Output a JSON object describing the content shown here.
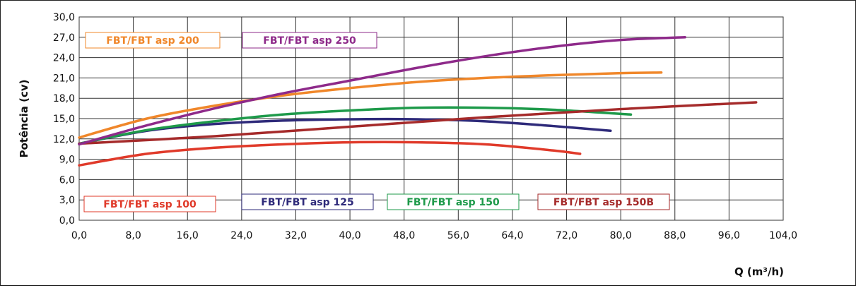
{
  "chart_data": {
    "type": "line",
    "title": "",
    "xlabel": "Q (m³/h)",
    "ylabel": "Potência (cv)",
    "xlim": [
      0,
      104
    ],
    "ylim": [
      0,
      30
    ],
    "xticks": [
      0,
      8,
      16,
      24,
      32,
      40,
      48,
      56,
      64,
      72,
      80,
      88,
      96,
      104
    ],
    "yticks": [
      0,
      3,
      6,
      9,
      12,
      15,
      18,
      21,
      24,
      27,
      30
    ],
    "xtick_labels": [
      "0,0",
      "8,0",
      "16,0",
      "24,0",
      "32,0",
      "40,0",
      "48,0",
      "56,0",
      "64,0",
      "72,0",
      "80,0",
      "88,0",
      "96,0",
      "104,0"
    ],
    "ytick_labels": [
      "0,0",
      "3,0",
      "6,0",
      "9,0",
      "12,0",
      "15,0",
      "18,0",
      "21,0",
      "24,0",
      "27,0",
      "30,0"
    ],
    "grid": true,
    "series": [
      {
        "name": "FBT/FBT asp 100",
        "color": "#e03a2a",
        "x": [
          0,
          10,
          20,
          30,
          40,
          50,
          60,
          70,
          74
        ],
        "y": [
          8.1,
          9.8,
          10.7,
          11.2,
          11.5,
          11.5,
          11.2,
          10.3,
          9.8
        ]
      },
      {
        "name": "FBT/FBT asp 125",
        "color": "#2e2a7a",
        "x": [
          0,
          10,
          20,
          30,
          40,
          50,
          60,
          70,
          78.5
        ],
        "y": [
          11.3,
          13.2,
          14.2,
          14.7,
          14.9,
          14.9,
          14.6,
          13.9,
          13.2
        ]
      },
      {
        "name": "FBT/FBT asp 150",
        "color": "#1e9a4a",
        "x": [
          0,
          10,
          20,
          30,
          40,
          50,
          60,
          70,
          81.5
        ],
        "y": [
          11.3,
          13.3,
          14.6,
          15.6,
          16.2,
          16.6,
          16.6,
          16.3,
          15.6
        ]
      },
      {
        "name": "FBT/FBT asp 150B",
        "color": "#a52a2a",
        "x": [
          0,
          20,
          40,
          60,
          80,
          100
        ],
        "y": [
          11.3,
          12.4,
          13.8,
          15.2,
          16.4,
          17.4
        ]
      },
      {
        "name": "FBT/FBT asp 200",
        "color": "#f0872a",
        "x": [
          0,
          10,
          20,
          30,
          40,
          50,
          60,
          70,
          80,
          86
        ],
        "y": [
          12.2,
          15.0,
          16.9,
          18.4,
          19.5,
          20.4,
          21.0,
          21.4,
          21.7,
          21.8
        ]
      },
      {
        "name": "FBT/FBT asp 250",
        "color": "#8e2a8a",
        "x": [
          0,
          10,
          20,
          30,
          40,
          50,
          60,
          70,
          80,
          89.5
        ],
        "y": [
          11.2,
          14.0,
          16.5,
          18.7,
          20.6,
          22.5,
          24.2,
          25.6,
          26.6,
          27.0
        ]
      }
    ]
  },
  "legend": [
    {
      "label": "FBT/FBT asp 200",
      "color": "#f0872a",
      "pos": "top-left"
    },
    {
      "label": "FBT/FBT asp 250",
      "color": "#8e2a8a",
      "pos": "top-left-2"
    },
    {
      "label": "FBT/FBT asp 100",
      "color": "#e03a2a",
      "pos": "bottom-1"
    },
    {
      "label": "FBT/FBT asp 125",
      "color": "#2e2a7a",
      "pos": "bottom-2"
    },
    {
      "label": "FBT/FBT asp 150",
      "color": "#1e9a4a",
      "pos": "bottom-3"
    },
    {
      "label": "FBT/FBT asp 150B",
      "color": "#a52a2a",
      "pos": "bottom-4"
    }
  ]
}
